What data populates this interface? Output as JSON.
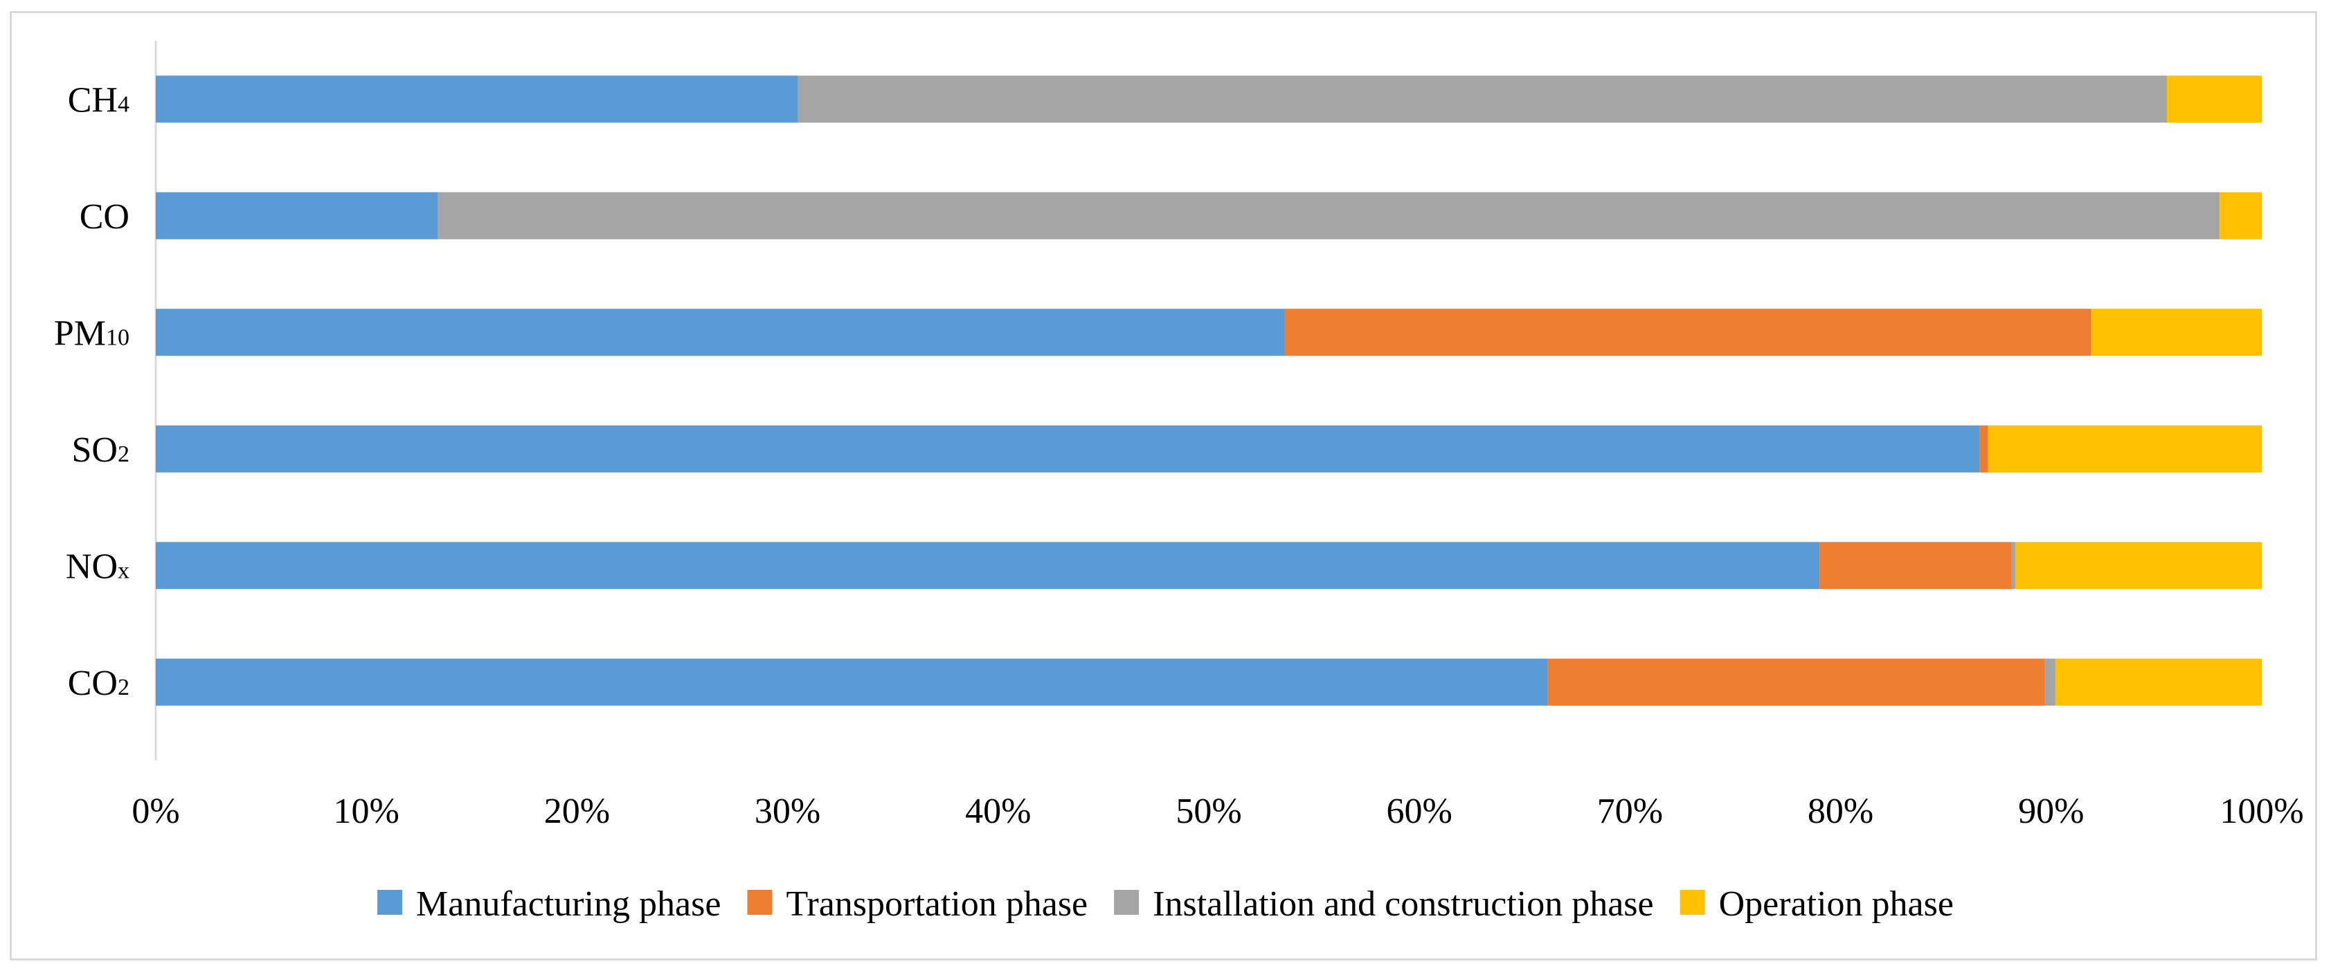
{
  "chart_data": {
    "type": "bar",
    "orientation": "horizontal",
    "stacked": true,
    "percent_stacked": true,
    "title": "",
    "xlabel": "",
    "ylabel": "",
    "xlim": [
      0,
      100
    ],
    "x_ticks": [
      "0%",
      "10%",
      "20%",
      "30%",
      "40%",
      "50%",
      "60%",
      "70%",
      "80%",
      "90%",
      "100%"
    ],
    "categories": [
      {
        "base": "CH",
        "sub": "4"
      },
      {
        "base": "CO",
        "sub": ""
      },
      {
        "base": "PM",
        "sub": "10"
      },
      {
        "base": "SO",
        "sub": "2"
      },
      {
        "base": "NO",
        "sub": "x"
      },
      {
        "base": "CO",
        "sub": "2"
      }
    ],
    "series": [
      {
        "name": "Manufacturing phase",
        "color": "#5B9BD5",
        "values": [
          30.5,
          13.4,
          53.6,
          86.6,
          79.0,
          66.1
        ]
      },
      {
        "name": "Transportation phase",
        "color": "#ED7D31",
        "values": [
          0.0,
          0.0,
          38.3,
          0.4,
          9.1,
          23.6
        ]
      },
      {
        "name": "Installation and construction phase",
        "color": "#A5A5A5",
        "values": [
          65.0,
          84.6,
          0.0,
          0.0,
          0.2,
          0.5
        ]
      },
      {
        "name": "Operation phase",
        "color": "#FFC000",
        "values": [
          4.5,
          2.0,
          8.1,
          13.0,
          11.7,
          9.8
        ]
      }
    ],
    "grid": false,
    "legend_position": "bottom"
  }
}
